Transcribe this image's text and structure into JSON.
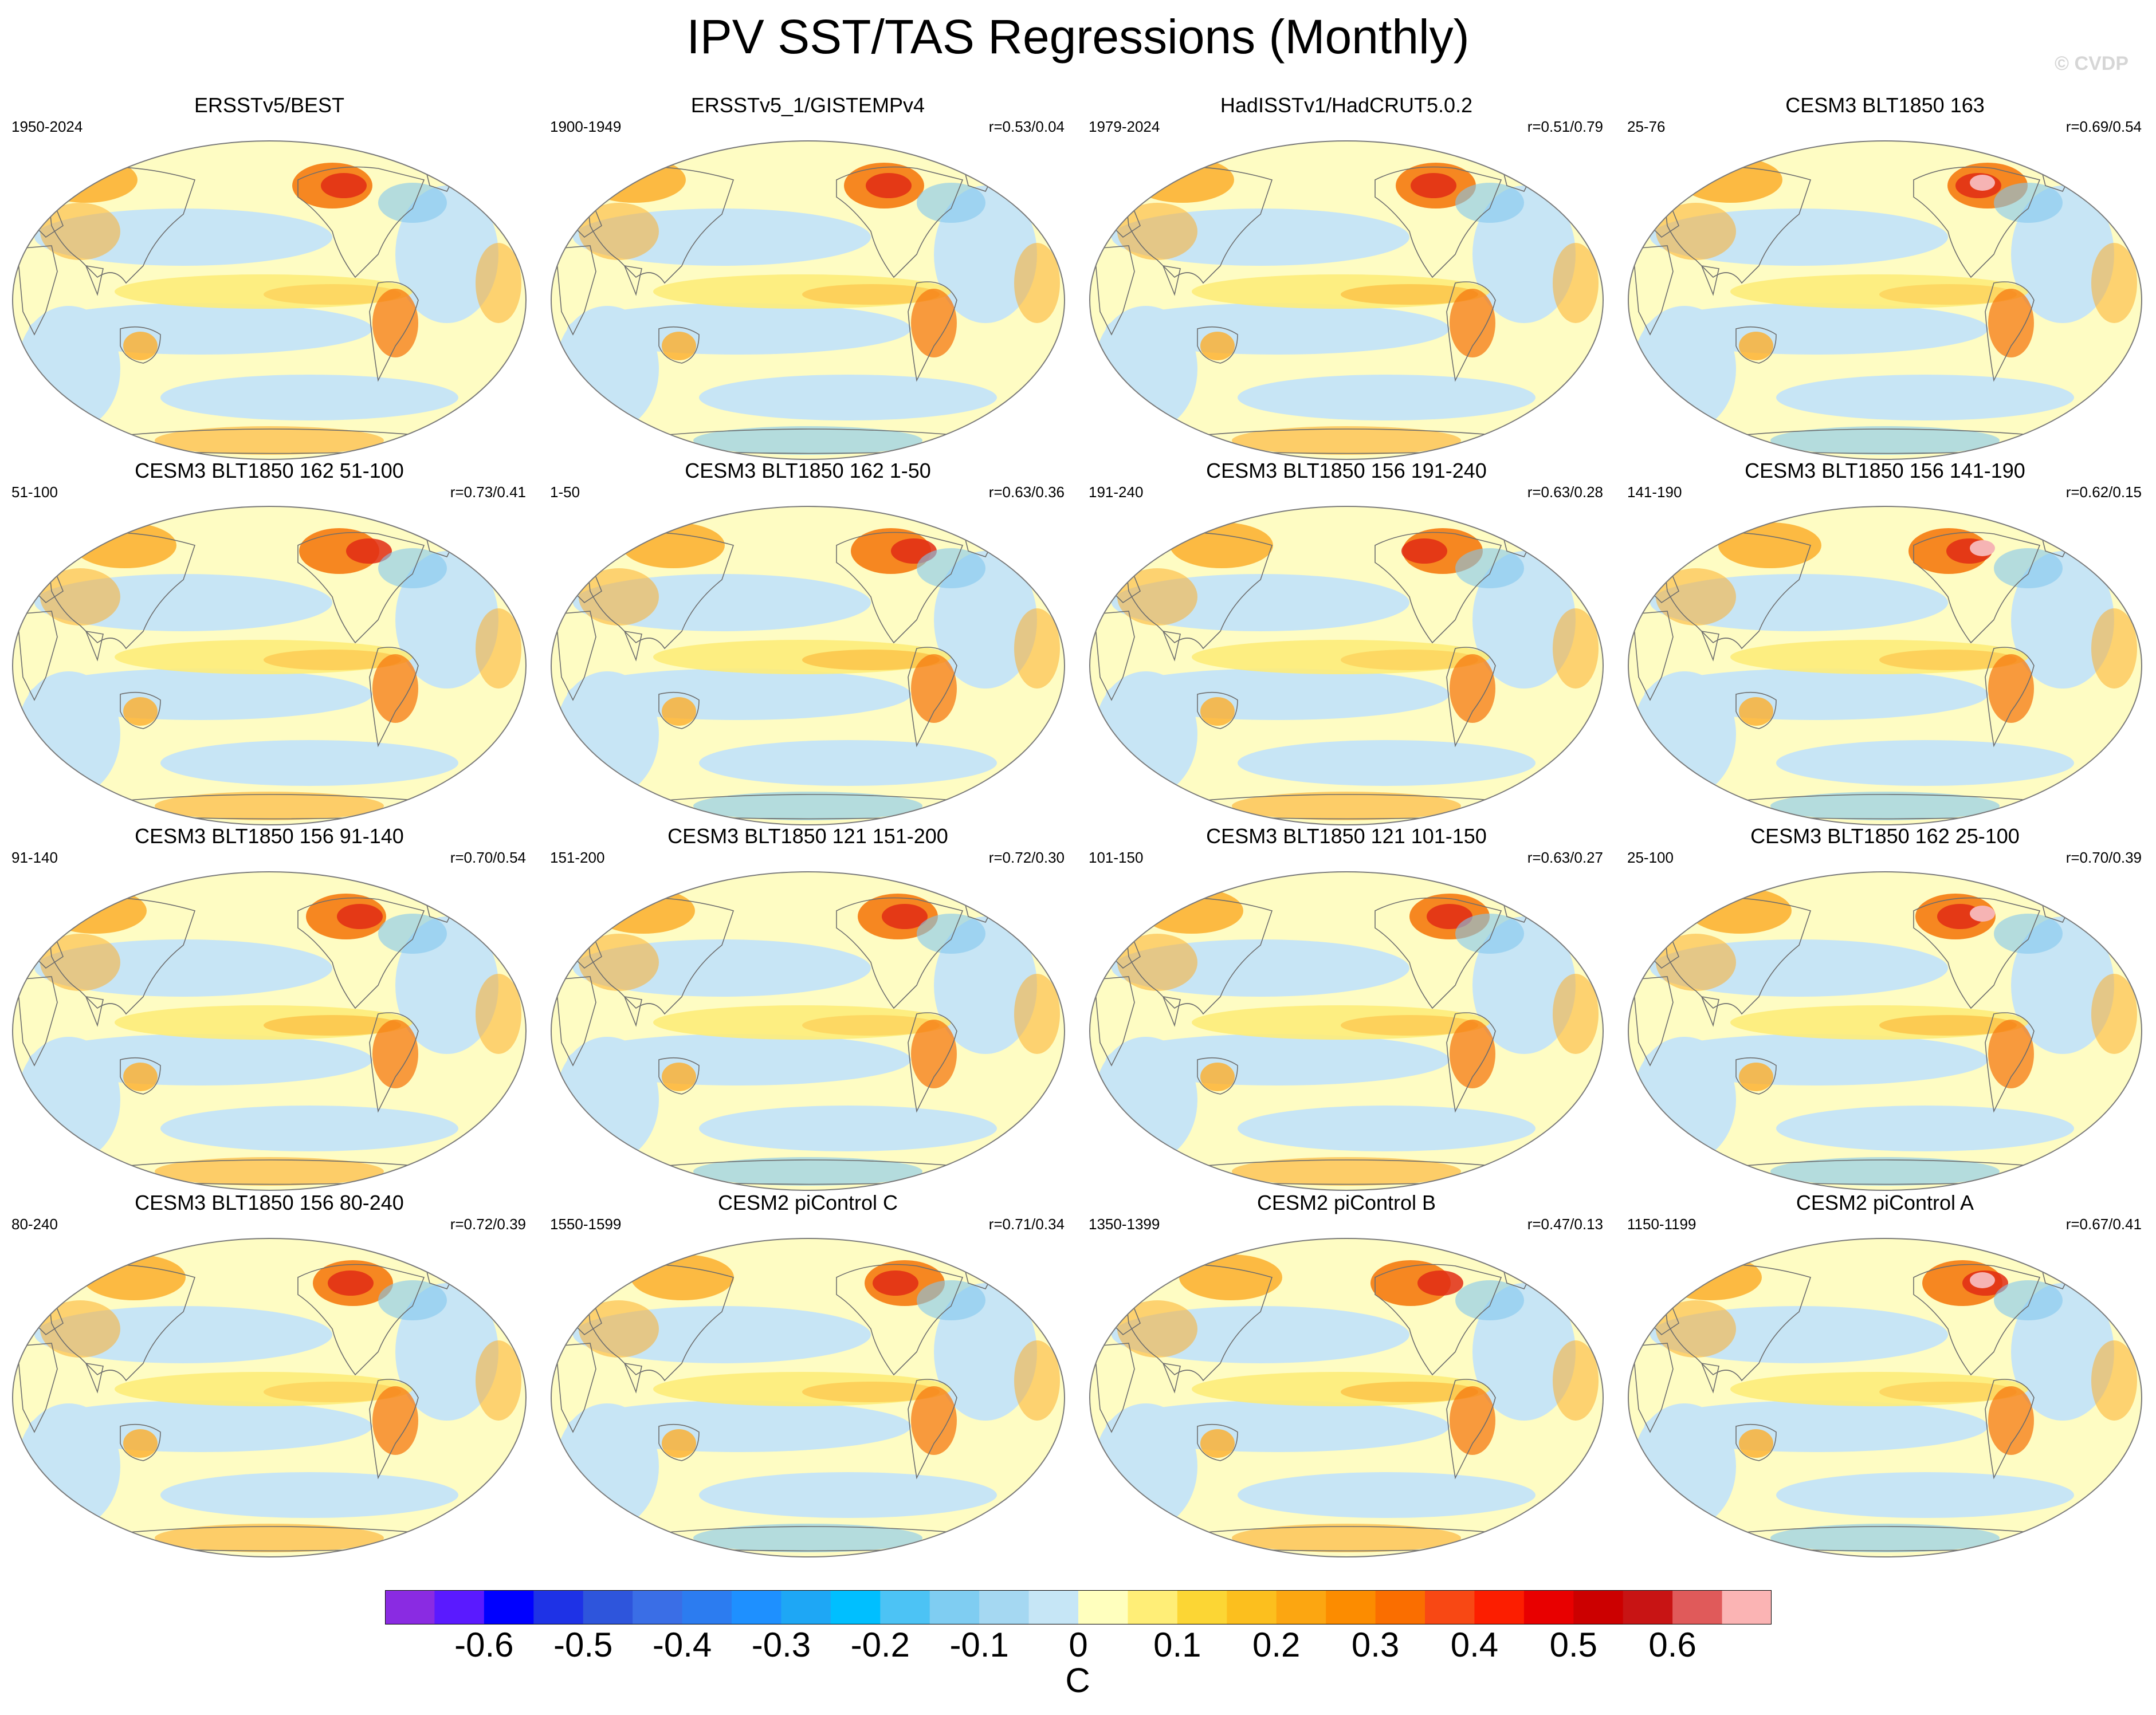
{
  "title": "IPV SST/TAS Regressions (Monthly)",
  "copyright": "© CVDP",
  "panels": [
    {
      "title": "ERSSTv5/BEST",
      "period": "1950-2024",
      "r": ""
    },
    {
      "title": "ERSSTv5_1/GISTEMPv4",
      "period": "1900-1949",
      "r": "r=0.53/0.04"
    },
    {
      "title": "HadISSTv1/HadCRUT5.0.2",
      "period": "1979-2024",
      "r": "r=0.51/0.79"
    },
    {
      "title": "CESM3 BLT1850 163",
      "period": "25-76",
      "r": "r=0.69/0.54"
    },
    {
      "title": "CESM3 BLT1850 162 51-100",
      "period": "51-100",
      "r": "r=0.73/0.41"
    },
    {
      "title": "CESM3 BLT1850 162 1-50",
      "period": "1-50",
      "r": "r=0.63/0.36"
    },
    {
      "title": "CESM3 BLT1850 156 191-240",
      "period": "191-240",
      "r": "r=0.63/0.28"
    },
    {
      "title": "CESM3 BLT1850 156 141-190",
      "period": "141-190",
      "r": "r=0.62/0.15"
    },
    {
      "title": "CESM3 BLT1850 156 91-140",
      "period": "91-140",
      "r": "r=0.70/0.54"
    },
    {
      "title": "CESM3 BLT1850 121 151-200",
      "period": "151-200",
      "r": "r=0.72/0.30"
    },
    {
      "title": "CESM3 BLT1850 121 101-150",
      "period": "101-150",
      "r": "r=0.63/0.27"
    },
    {
      "title": "CESM3 BLT1850 162 25-100",
      "period": "25-100",
      "r": "r=0.70/0.39"
    },
    {
      "title": "CESM3 BLT1850 156 80-240",
      "period": "80-240",
      "r": "r=0.72/0.39"
    },
    {
      "title": "CESM2 piControl C",
      "period": "1550-1599",
      "r": "r=0.71/0.34"
    },
    {
      "title": "CESM2 piControl B",
      "period": "1350-1399",
      "r": "r=0.47/0.13"
    },
    {
      "title": "CESM2 piControl A",
      "period": "1150-1199",
      "r": "r=0.67/0.41"
    }
  ],
  "colorbar": {
    "units": "C",
    "tick_labels": [
      "-0.6",
      "-0.5",
      "-0.4",
      "-0.3",
      "-0.2",
      "-0.1",
      "0",
      "0.1",
      "0.2",
      "0.3",
      "0.4",
      "0.5",
      "0.6"
    ],
    "colors": [
      "#8a2be2",
      "#5a1aff",
      "#0000ff",
      "#1e32e6",
      "#2e55dc",
      "#3a6ee6",
      "#2c7cf0",
      "#1e90ff",
      "#1ea7f5",
      "#00bfff",
      "#4cc3f5",
      "#7fcdf2",
      "#a5d8f2",
      "#c6e6f6",
      "#ffffbe",
      "#ffee77",
      "#fcd634",
      "#fcbf1e",
      "#fca611",
      "#fc8c00",
      "#fa6e00",
      "#f84814",
      "#fc1e00",
      "#e80000",
      "#cc0000",
      "#c81414",
      "#e05a5a",
      "#fbb4b4"
    ]
  },
  "map_colors": {
    "background": "#fefcc3",
    "light_blue": "#c7e5f5",
    "mid_blue": "#82c7ef",
    "dark_blue": "#3c7de8",
    "light_yellow": "#fdec7a",
    "orange": "#fcae2c",
    "dark_orange": "#f57a10",
    "red": "#e02c14",
    "pink": "#f6b4b4"
  }
}
